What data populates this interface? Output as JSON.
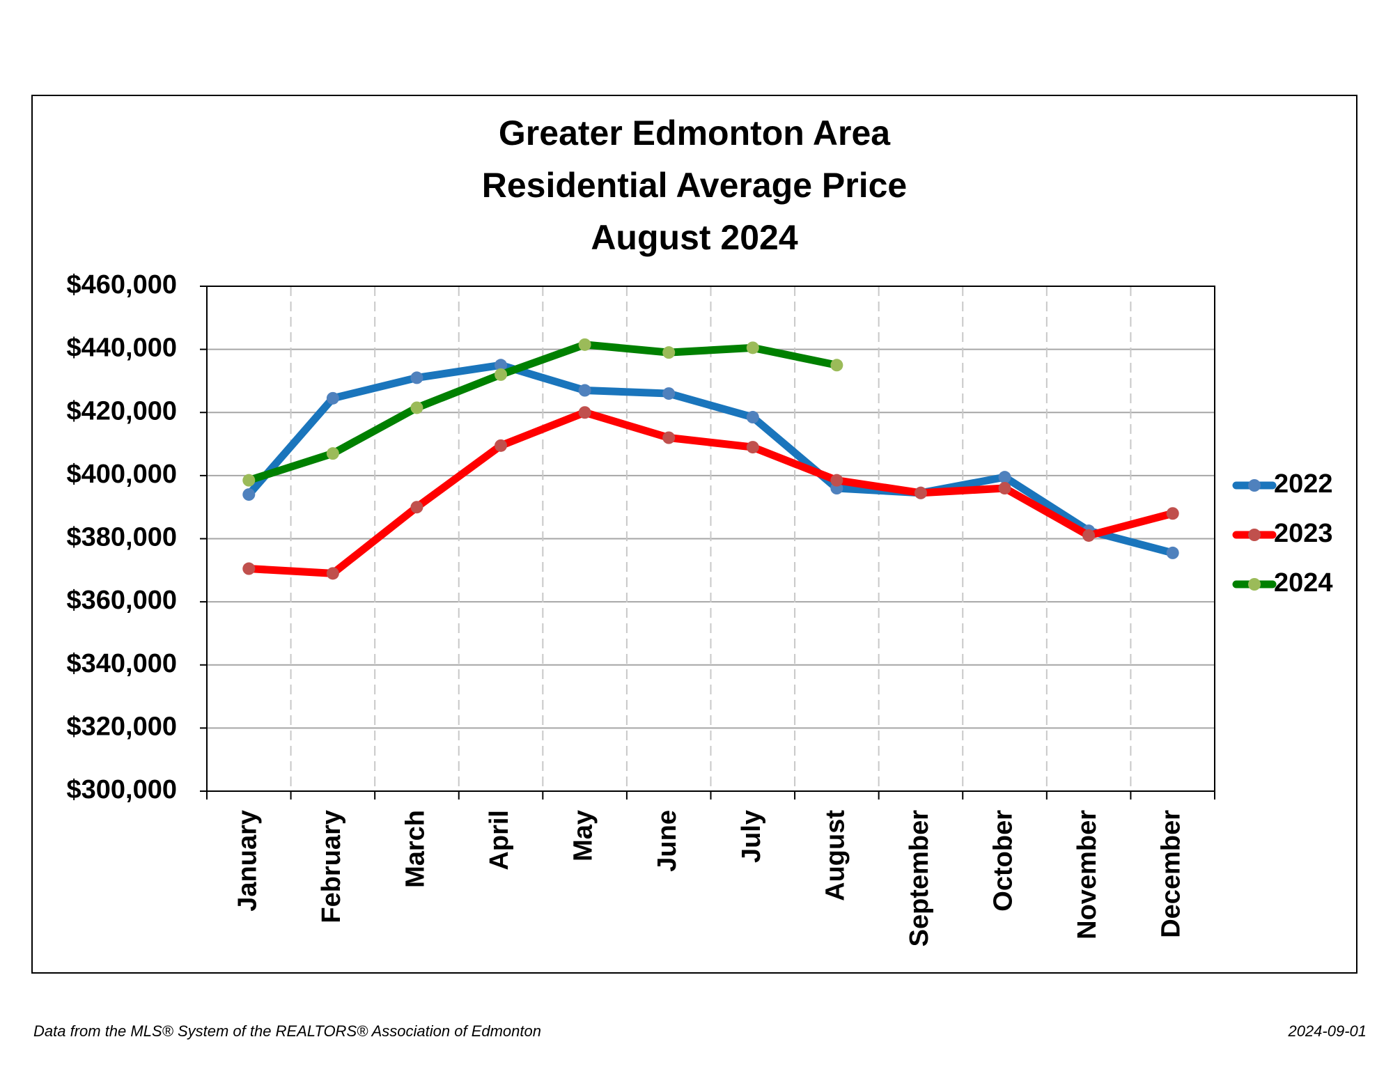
{
  "chart_data": {
    "type": "line",
    "title": [
      "Greater Edmonton Area",
      "Residential Average Price",
      "August 2024"
    ],
    "categories": [
      "January",
      "February",
      "March",
      "April",
      "May",
      "June",
      "July",
      "August",
      "September",
      "October",
      "November",
      "December"
    ],
    "series": [
      {
        "name": "2022",
        "color": "#1a75bc",
        "marker_color": "#4f81bd",
        "values": [
          394000,
          424500,
          431000,
          435000,
          427000,
          426000,
          418500,
          396000,
          394500,
          399500,
          382500,
          375500
        ]
      },
      {
        "name": "2023",
        "color": "#ff0000",
        "marker_color": "#c0504d",
        "values": [
          370500,
          369000,
          390000,
          409500,
          420000,
          412000,
          409000,
          398500,
          394500,
          396000,
          381000,
          388000
        ]
      },
      {
        "name": "2024",
        "color": "#008000",
        "marker_color": "#9bbb59",
        "values": [
          398500,
          407000,
          421500,
          432000,
          441500,
          439000,
          440500,
          435000,
          null,
          null,
          null,
          null
        ]
      }
    ],
    "ylim": [
      300000,
      460000
    ],
    "yticks": [
      {
        "value": 300000,
        "label": "$300,000"
      },
      {
        "value": 320000,
        "label": "$320,000"
      },
      {
        "value": 340000,
        "label": "$340,000"
      },
      {
        "value": 360000,
        "label": "$360,000"
      },
      {
        "value": 380000,
        "label": "$380,000"
      },
      {
        "value": 400000,
        "label": "$400,000"
      },
      {
        "value": 420000,
        "label": "$420,000"
      },
      {
        "value": 440000,
        "label": "$440,000"
      },
      {
        "value": 460000,
        "label": "$460,000"
      }
    ],
    "grid": true,
    "legend": "right"
  },
  "footer": {
    "source": "Data from the MLS® System of the REALTORS® Association of Edmonton",
    "date": "2024-09-01"
  }
}
